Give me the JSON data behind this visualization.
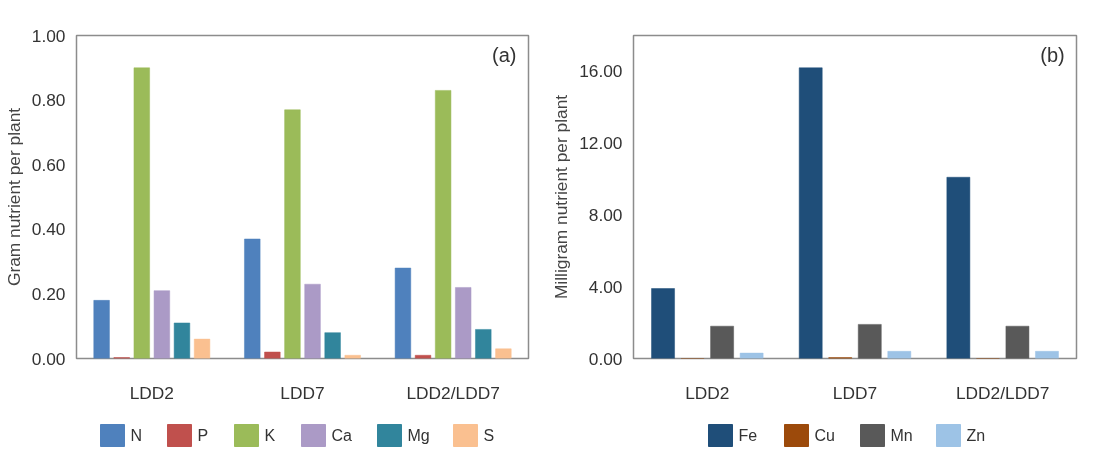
{
  "chart_data": [
    {
      "type": "bar",
      "title": "(a)",
      "ylabel": "Gram nutrient per plant",
      "categories": [
        "LDD2",
        "LDD7",
        "LDD2/LDD7"
      ],
      "ylim": [
        0,
        1
      ],
      "yticks": [
        {
          "value": 0,
          "label": "0.00"
        },
        {
          "value": 0.2,
          "label": "0.20"
        },
        {
          "value": 0.4,
          "label": "0.40"
        },
        {
          "value": 0.6,
          "label": "0.60"
        },
        {
          "value": 0.8,
          "label": "0.80"
        },
        {
          "value": 1,
          "label": "1.00"
        }
      ],
      "grid": false,
      "legend": "bottom",
      "series": [
        {
          "name": "N",
          "color": "#4f81bd",
          "values": [
            0.18,
            0.37,
            0.28
          ]
        },
        {
          "name": "P",
          "color": "#c0504d",
          "values": [
            0.003,
            0.02,
            0.01
          ]
        },
        {
          "name": "K",
          "color": "#9bbb59",
          "values": [
            0.9,
            0.77,
            0.83
          ]
        },
        {
          "name": "Ca",
          "color": "#ab9ac6",
          "values": [
            0.21,
            0.23,
            0.22
          ]
        },
        {
          "name": "Mg",
          "color": "#31859c",
          "values": [
            0.11,
            0.08,
            0.09
          ]
        },
        {
          "name": "S",
          "color": "#fac090",
          "values": [
            0.06,
            0.01,
            0.03
          ]
        }
      ]
    },
    {
      "type": "bar",
      "title": "(b)",
      "ylabel": "Milligram nutrient per plant",
      "categories": [
        "LDD2",
        "LDD7",
        "LDD2/LDD7"
      ],
      "ylim": [
        0,
        18
      ],
      "yticks": [
        {
          "value": 0,
          "label": "0.00"
        },
        {
          "value": 4,
          "label": "4.00"
        },
        {
          "value": 8,
          "label": "8.00"
        },
        {
          "value": 12,
          "label": "12.00"
        },
        {
          "value": 16,
          "label": "16.00"
        }
      ],
      "grid": false,
      "legend": "bottom",
      "series": [
        {
          "name": "Fe",
          "color": "#1f4e79",
          "values": [
            3.9,
            16.2,
            10.1
          ]
        },
        {
          "name": "Cu",
          "color": "#9c4a0b",
          "values": [
            0,
            0.05,
            0
          ]
        },
        {
          "name": "Mn",
          "color": "#595959",
          "values": [
            1.8,
            1.9,
            1.8
          ]
        },
        {
          "name": "Zn",
          "color": "#9dc3e6",
          "values": [
            0.3,
            0.4,
            0.4
          ]
        }
      ]
    }
  ]
}
